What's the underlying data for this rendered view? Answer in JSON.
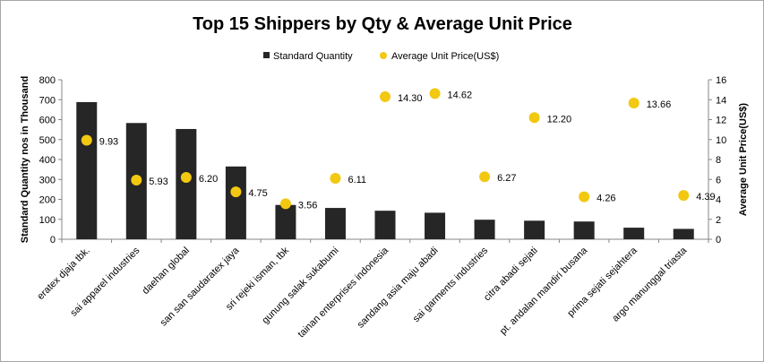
{
  "chart_data": {
    "type": "bar",
    "title": "Top 15 Shippers by Qty & Average Unit Price",
    "ylabel": "Standard Quantity nos in Thousand",
    "y2label": "Average Unit Price(US$)",
    "ylim": [
      0,
      800
    ],
    "y2lim": [
      0,
      16
    ],
    "yticks": [
      "0",
      "100",
      "200",
      "300",
      "400",
      "500",
      "600",
      "700",
      "800"
    ],
    "y2ticks": [
      "0",
      "2",
      "4",
      "6",
      "8",
      "10",
      "12",
      "14",
      "16"
    ],
    "legend_position": "top",
    "categories": [
      "eratex djaja tbk.",
      "sai apparel industries",
      "daehan global",
      "san san saudaratex jaya",
      "sri rejeki isman, tbk",
      "gunung salak sukabumi",
      "tainan enterprises indonesia",
      "sandang asia maju abadi",
      "sai garments industries",
      "citra abadi sejati",
      "pt. andalan mandiri busana",
      "prima sejati sejahtera",
      "argo manunggal triasta"
    ],
    "series": [
      {
        "name": "Standard Quantity",
        "kind": "bar",
        "axis": "left",
        "color": "#262626",
        "values": [
          688,
          583,
          553,
          365,
          172,
          157,
          143,
          133,
          98,
          93,
          89,
          58,
          52
        ]
      },
      {
        "name": "Average Unit Price(US$)",
        "kind": "scatter",
        "axis": "right",
        "color": "#f2c811",
        "values": [
          9.93,
          5.93,
          6.2,
          4.75,
          3.56,
          6.11,
          14.3,
          14.62,
          6.27,
          12.2,
          4.26,
          13.66,
          4.39
        ],
        "labels": [
          "9.93",
          "5.93",
          "6.20",
          "4.75",
          "3.56",
          "6.11",
          "14.30",
          "14.62",
          "6.27",
          "12.20",
          "4.26",
          "13.66",
          "4.39"
        ]
      }
    ]
  }
}
